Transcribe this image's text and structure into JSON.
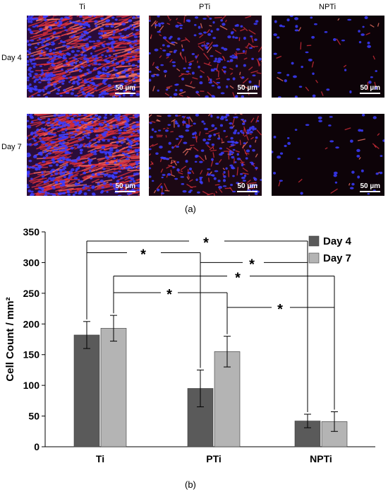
{
  "panel_a": {
    "columns": [
      "Ti",
      "PTi",
      "NPTi"
    ],
    "rows": [
      "Day 4",
      "Day 7"
    ],
    "scale_bar": "50 µm",
    "label": "(a)"
  },
  "panel_b": {
    "label": "(b)"
  },
  "chart_data": {
    "type": "bar",
    "title": "",
    "xlabel": "",
    "ylabel": "Cell Count / mm²",
    "ylim": [
      0,
      350
    ],
    "yticks": [
      0,
      50,
      100,
      150,
      200,
      250,
      300,
      350
    ],
    "categories": [
      "Ti",
      "PTi",
      "NPTi"
    ],
    "series": [
      {
        "name": "Day 4",
        "values": [
          182,
          95,
          42
        ],
        "errors": [
          22,
          30,
          11
        ],
        "color": "#5a5a5a"
      },
      {
        "name": "Day 7",
        "values": [
          193,
          155,
          41
        ],
        "errors": [
          21,
          25,
          16
        ],
        "color": "#b4b4b4"
      }
    ],
    "legend_position": "top-right",
    "significance": [
      {
        "label": "*",
        "from": "Ti Day 4",
        "to": "NPTi Day 4"
      },
      {
        "label": "*",
        "from": "Ti Day 4",
        "to": "PTi Day 4"
      },
      {
        "label": "*",
        "from": "PTi Day 4",
        "to": "NPTi Day 4"
      },
      {
        "label": "*",
        "from": "Ti Day 7",
        "to": "NPTi Day 7"
      },
      {
        "label": "*",
        "from": "Ti Day 7",
        "to": "PTi Day 7"
      },
      {
        "label": "*",
        "from": "PTi Day 7",
        "to": "NPTi Day 7"
      }
    ]
  }
}
